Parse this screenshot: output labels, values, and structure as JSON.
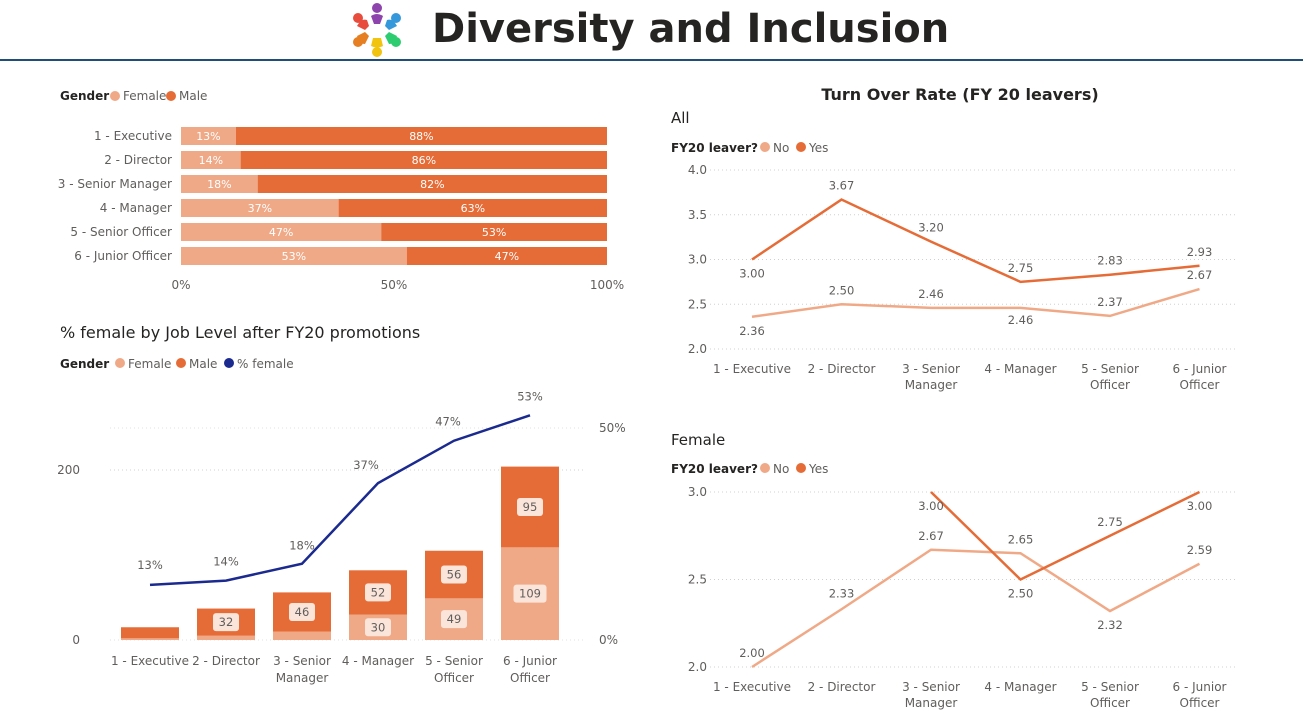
{
  "header": {
    "title": "Diversity and Inclusion",
    "logo_icon": "people-circle-logo-icon"
  },
  "colors": {
    "female": "#f0a987",
    "male": "#e66c37",
    "pct_female": "#1a2a8f",
    "no": "#f0a987",
    "yes": "#e66c37",
    "header_rule": "#1f4e79"
  },
  "chart_data": [
    {
      "id": "gender_by_level",
      "type": "bar",
      "orientation": "horizontal",
      "stacked": "100%",
      "title": "",
      "legend": {
        "title": "Gender",
        "position": "top-left"
      },
      "categories": [
        "1 - Executive",
        "2 - Director",
        "3 - Senior Manager",
        "4 - Manager",
        "5 - Senior Officer",
        "6 - Junior Officer"
      ],
      "series": [
        {
          "name": "Female",
          "values": [
            13,
            14,
            18,
            37,
            47,
            53
          ],
          "labels": [
            "13%",
            "14%",
            "18%",
            "37%",
            "47%",
            "53%"
          ]
        },
        {
          "name": "Male",
          "values": [
            88,
            86,
            82,
            63,
            53,
            47
          ],
          "labels": [
            "88%",
            "86%",
            "82%",
            "63%",
            "53%",
            "47%"
          ]
        }
      ],
      "xlim": [
        0,
        100
      ],
      "xticks": [
        "0%",
        "50%",
        "100%"
      ]
    },
    {
      "id": "pct_female_after_promotions",
      "type": "bar",
      "stacked": true,
      "title": "% female by Job Level after FY20 promotions",
      "legend": {
        "title": "Gender",
        "position": "top-left"
      },
      "categories": [
        "1 - Executive",
        "2 - Director",
        "3 - Senior Manager",
        "4 - Manager",
        "5 - Senior Officer",
        "6 - Junior Officer"
      ],
      "categories_display": [
        [
          "1 - Executive"
        ],
        [
          "2 - Director"
        ],
        [
          "3 - Senior",
          "Manager"
        ],
        [
          "4 - Manager"
        ],
        [
          "5 - Senior",
          "Officer"
        ],
        [
          "6 - Junior",
          "Officer"
        ]
      ],
      "series": [
        {
          "name": "Female",
          "values": [
            2,
            5,
            10,
            30,
            49,
            109
          ],
          "labels": [
            "",
            "",
            "",
            "30",
            "49",
            "109"
          ]
        },
        {
          "name": "Male",
          "values": [
            13,
            32,
            46,
            52,
            56,
            95
          ],
          "labels": [
            "",
            "32",
            "46",
            "52",
            "56",
            "95"
          ]
        }
      ],
      "line_series": {
        "name": "% female",
        "values": [
          13,
          14,
          18,
          37,
          47,
          53
        ],
        "labels": [
          "13%",
          "14%",
          "18%",
          "37%",
          "47%",
          "53%"
        ]
      },
      "ylim": [
        0,
        260
      ],
      "yticks": [
        "0",
        "200"
      ],
      "y2lim": [
        0,
        60
      ],
      "y2ticks": [
        "0%",
        "50%"
      ]
    },
    {
      "id": "turnover_all",
      "type": "line",
      "title": "Turn Over Rate (FY 20 leavers)",
      "subtitle": "All",
      "legend": {
        "title": "FY20 leaver?",
        "position": "top-left"
      },
      "categories": [
        "1 - Executive",
        "2 - Director",
        "3 - Senior Manager",
        "4 - Manager",
        "5 - Senior Officer",
        "6 - Junior Officer"
      ],
      "categories_display": [
        [
          "1 - Executive"
        ],
        [
          "2 - Director"
        ],
        [
          "3 - Senior",
          "Manager"
        ],
        [
          "4 - Manager"
        ],
        [
          "5 - Senior",
          "Officer"
        ],
        [
          "6 - Junior",
          "Officer"
        ]
      ],
      "series": [
        {
          "name": "No",
          "values": [
            2.36,
            2.5,
            2.46,
            2.46,
            2.37,
            2.67
          ],
          "labels": [
            "2.36",
            "2.50",
            "2.46",
            "2.46",
            "2.37",
            "2.67"
          ]
        },
        {
          "name": "Yes",
          "values": [
            3.0,
            3.67,
            3.2,
            2.75,
            2.83,
            2.93
          ],
          "labels": [
            "3.00",
            "3.67",
            "3.20",
            "2.75",
            "2.83",
            "2.93"
          ]
        }
      ],
      "ylim": [
        2.0,
        4.0
      ],
      "yticks": [
        "2.0",
        "2.5",
        "3.0",
        "3.5",
        "4.0"
      ]
    },
    {
      "id": "turnover_female",
      "type": "line",
      "title": "",
      "subtitle": "Female",
      "legend": {
        "title": "FY20 leaver?",
        "position": "top-left"
      },
      "categories": [
        "1 - Executive",
        "2 - Director",
        "3 - Senior Manager",
        "4 - Manager",
        "5 - Senior Officer",
        "6 - Junior Officer"
      ],
      "categories_display": [
        [
          "1 - Executive"
        ],
        [
          "2 - Director"
        ],
        [
          "3 - Senior",
          "Manager"
        ],
        [
          "4 - Manager"
        ],
        [
          "5 - Senior",
          "Officer"
        ],
        [
          "6 - Junior",
          "Officer"
        ]
      ],
      "series": [
        {
          "name": "No",
          "values": [
            2.0,
            2.33,
            2.67,
            2.65,
            2.32,
            2.59
          ],
          "labels": [
            "2.00",
            "2.33",
            "2.67",
            "2.65",
            "2.32",
            "2.59"
          ]
        },
        {
          "name": "Yes",
          "values": [
            null,
            null,
            3.0,
            2.5,
            2.75,
            3.0
          ],
          "labels": [
            "",
            "",
            "3.00",
            "2.50",
            "2.75",
            "3.00"
          ]
        }
      ],
      "ylim": [
        2.0,
        3.0
      ],
      "yticks": [
        "2.0",
        "2.5",
        "3.0"
      ]
    }
  ]
}
